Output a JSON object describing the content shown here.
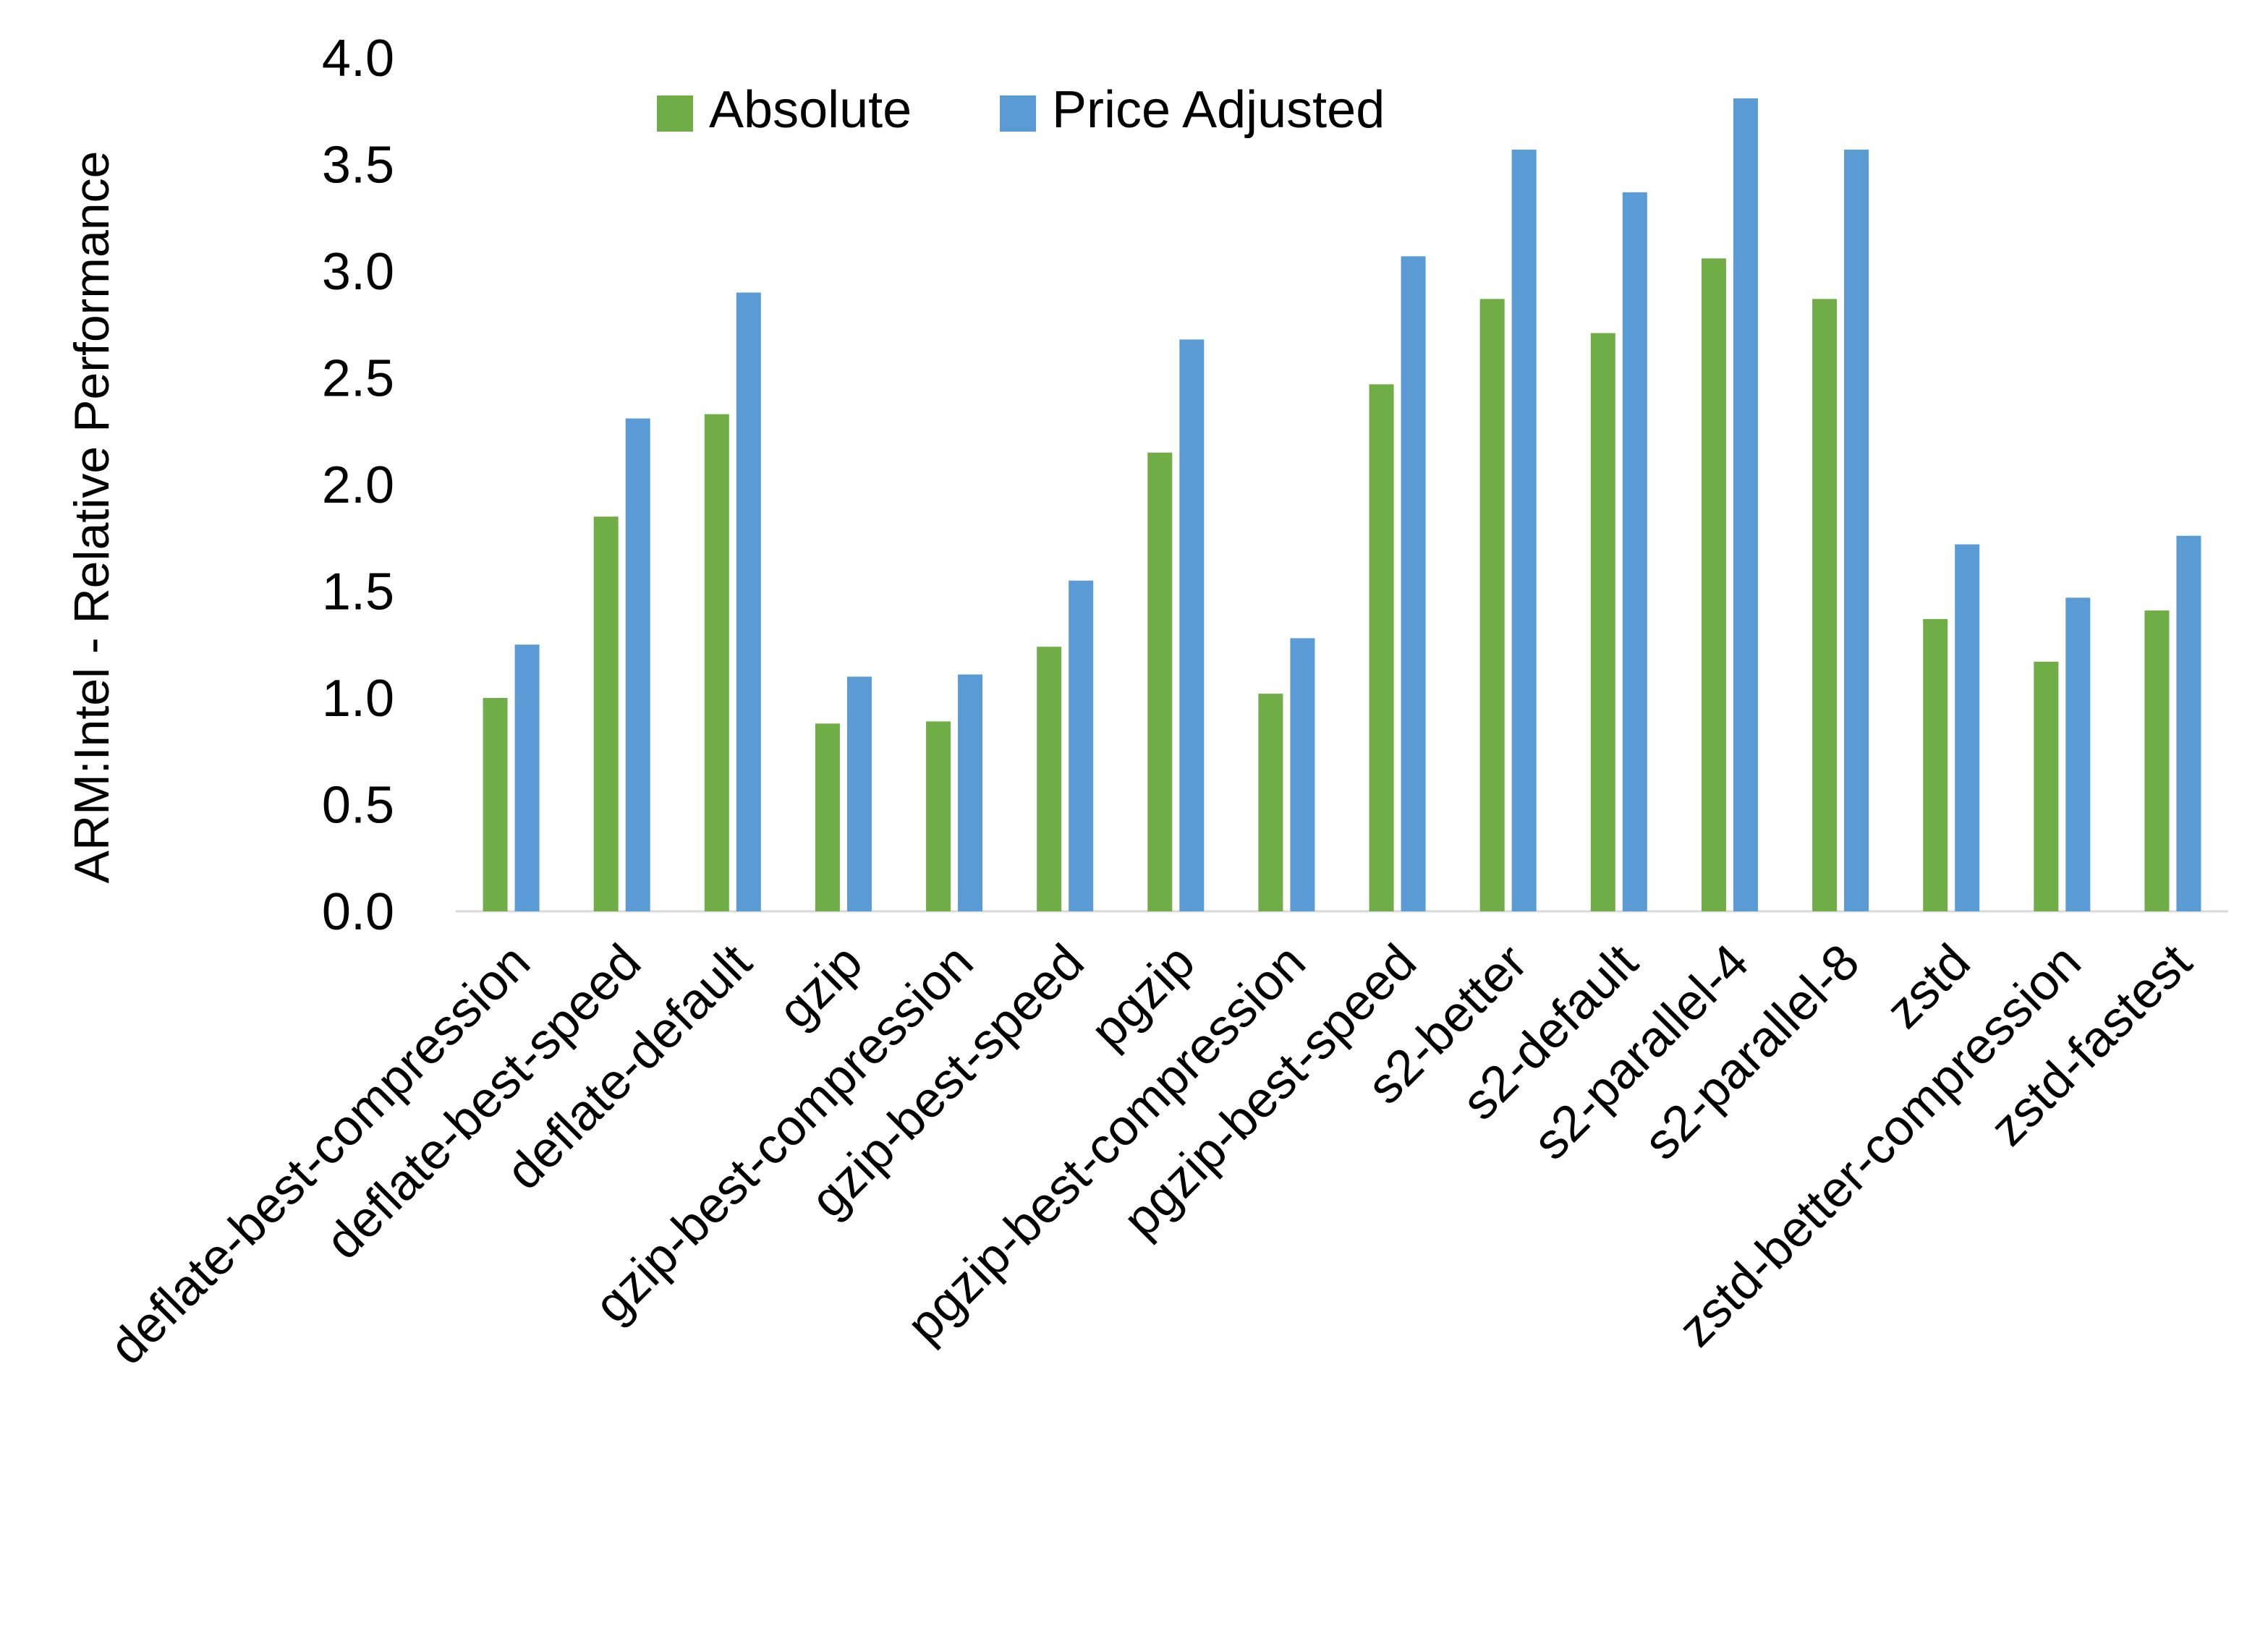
{
  "chart_data": {
    "type": "bar",
    "title": "",
    "xlabel": "",
    "ylabel": "ARM:Intel - Relative Performance",
    "ylim": [
      0,
      4.0
    ],
    "yticks": [
      "0.0",
      "0.5",
      "1.0",
      "1.5",
      "2.0",
      "2.5",
      "3.0",
      "3.5",
      "4.0"
    ],
    "grid": false,
    "legend_position": "top-center",
    "categories": [
      "deflate-best-compression",
      "deflate-best-speed",
      "deflate-default",
      "gzip",
      "gzip-best-compression",
      "gzip-best-speed",
      "pgzip",
      "pgzip-best-compression",
      "pgzip-best-speed",
      "s2-better",
      "s2-default",
      "s2-parallel-4",
      "s2-parallel-8",
      "zstd",
      "zstd-better-compression",
      "zstd-fastest"
    ],
    "series": [
      {
        "name": "Absolute",
        "color": "#70ad47",
        "values": [
          1.0,
          1.85,
          2.33,
          0.88,
          0.89,
          1.24,
          2.15,
          1.02,
          2.47,
          2.87,
          2.71,
          3.06,
          2.87,
          1.37,
          1.17,
          1.41
        ]
      },
      {
        "name": "Price Adjusted",
        "color": "#5b9bd5",
        "values": [
          1.25,
          2.31,
          2.9,
          1.1,
          1.11,
          1.55,
          2.68,
          1.28,
          3.07,
          3.57,
          3.37,
          3.81,
          3.57,
          1.72,
          1.47,
          1.76
        ]
      }
    ]
  }
}
